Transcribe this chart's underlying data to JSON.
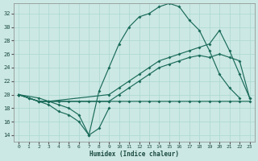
{
  "xlabel": "Humidex (Indice chaleur)",
  "bg_color": "#cce8e4",
  "line_color": "#1a6b5a",
  "grid_color": "#aad8d0",
  "xlim": [
    -0.5,
    23.5
  ],
  "ylim": [
    13.0,
    33.5
  ],
  "yticks": [
    14,
    16,
    18,
    20,
    22,
    24,
    26,
    28,
    30,
    32
  ],
  "xticks": [
    0,
    1,
    2,
    3,
    4,
    5,
    6,
    7,
    8,
    9,
    10,
    11,
    12,
    13,
    14,
    15,
    16,
    17,
    18,
    19,
    20,
    21,
    22,
    23
  ],
  "line_dip_x": [
    0,
    1,
    2,
    3,
    4,
    5,
    6,
    7,
    8,
    9
  ],
  "line_dip_y": [
    20,
    19.5,
    19,
    19,
    18.5,
    18,
    17,
    14,
    15,
    18
  ],
  "line_flat_x": [
    0,
    2,
    3,
    4,
    5,
    6,
    7,
    8,
    9,
    10,
    11,
    12,
    13,
    14,
    15,
    16,
    17,
    18,
    19,
    20,
    21,
    22,
    23
  ],
  "line_flat_y": [
    20,
    19,
    19,
    19,
    19,
    19,
    19,
    19,
    19,
    19,
    19,
    19,
    19,
    19,
    19,
    19,
    19,
    19,
    19,
    19,
    19,
    19,
    19
  ],
  "line_diag1_x": [
    0,
    2,
    3,
    9,
    10,
    11,
    12,
    13,
    14,
    15,
    16,
    17,
    18,
    19,
    20,
    21,
    22,
    23
  ],
  "line_diag1_y": [
    20,
    19,
    19,
    19,
    20,
    21,
    22,
    23,
    24,
    24.5,
    25,
    25.5,
    25.8,
    25.5,
    26,
    25.5,
    25,
    19.5
  ],
  "line_diag2_x": [
    0,
    2,
    3,
    9,
    10,
    11,
    12,
    13,
    14,
    15,
    16,
    17,
    18,
    19,
    20,
    21,
    22,
    23
  ],
  "line_diag2_y": [
    20,
    19.5,
    19,
    20,
    21,
    22,
    23,
    24,
    25,
    25.5,
    26,
    26.5,
    27,
    27.5,
    29.5,
    26.5,
    23,
    19.5
  ],
  "line_peak_x": [
    0,
    1,
    2,
    3,
    4,
    5,
    6,
    7,
    8,
    9,
    10,
    11,
    12,
    13,
    14,
    15,
    16,
    17,
    18,
    19,
    20,
    21,
    22
  ],
  "line_peak_y": [
    20,
    19.5,
    19,
    18.5,
    17.5,
    17,
    16,
    14,
    20.5,
    24,
    27.5,
    30,
    31.5,
    32,
    33,
    33.5,
    33,
    31,
    29.5,
    26.5,
    23,
    21,
    19.5
  ]
}
